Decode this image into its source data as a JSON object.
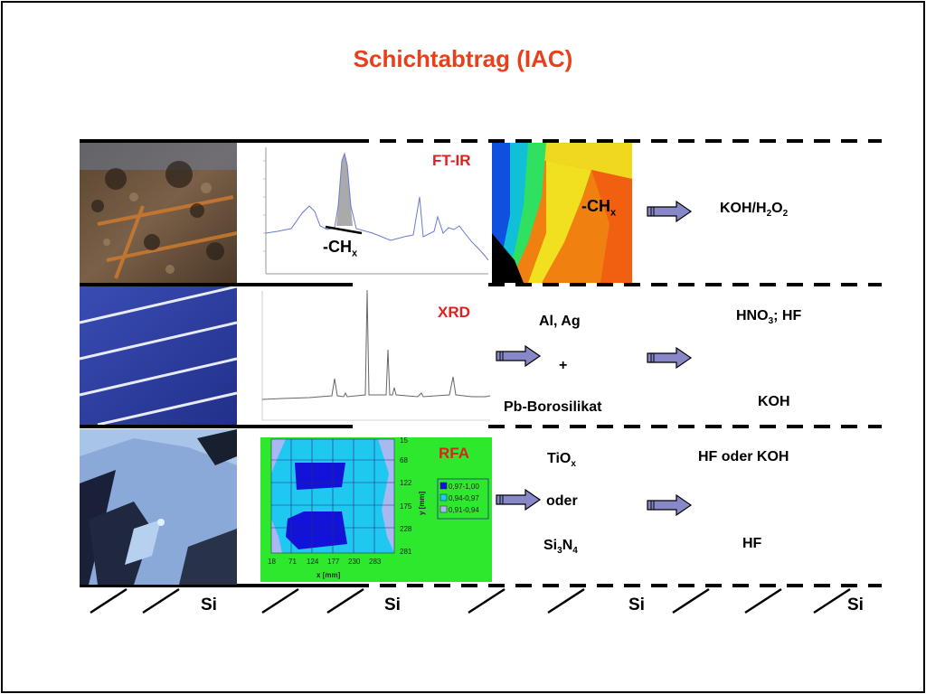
{
  "title": "Schichtabtrag (IAC)",
  "rows": [
    {
      "method": "FT-IR",
      "chart_annotation": {
        "base": "-CH",
        "sub": "x"
      },
      "map_annotation": {
        "base": "-CH",
        "sub": "x"
      },
      "reagent": {
        "parts": [
          {
            "t": "KOH/H"
          },
          {
            "s": "2"
          },
          {
            "t": "O"
          },
          {
            "s": "2"
          }
        ]
      }
    },
    {
      "method": "XRD",
      "materials": [
        "Al, Ag",
        "+",
        "Pb-Borosilikat"
      ],
      "reagent_top": {
        "parts": [
          {
            "t": "HNO"
          },
          {
            "s": "3"
          },
          {
            "t": "; HF"
          }
        ]
      },
      "reagent_bottom": "KOH"
    },
    {
      "method": "RFA",
      "materials": {
        "tiox": {
          "base": "TiO",
          "sub": "x"
        },
        "oder": "oder",
        "si3n4": {
          "parts": [
            {
              "t": "Si"
            },
            {
              "s": "3"
            },
            {
              "t": "N"
            },
            {
              "s": "4"
            }
          ]
        }
      },
      "reagent_top": "HF oder KOH",
      "reagent_bottom": "HF",
      "map": {
        "x_ticks": [
          "18",
          "71",
          "124",
          "177",
          "230",
          "283"
        ],
        "y_ticks": [
          "15",
          "68",
          "122",
          "175",
          "228",
          "281"
        ],
        "xlabel": "x [mm]",
        "ylabel": "y [mm]",
        "legend": [
          "0,97-1,00",
          "0,94-0,97",
          "0,91-0,94"
        ],
        "colors": {
          "bg": "#2ee82e",
          "high": "#1212d8",
          "mid": "#1ec8f0",
          "low": "#a8b8f0"
        }
      }
    }
  ],
  "substrate_labels": [
    "Si",
    "Si",
    "Si",
    "Si"
  ],
  "colors": {
    "title": "#e8401c",
    "method": "#e02020",
    "arrow_fill": "#8888c8"
  }
}
